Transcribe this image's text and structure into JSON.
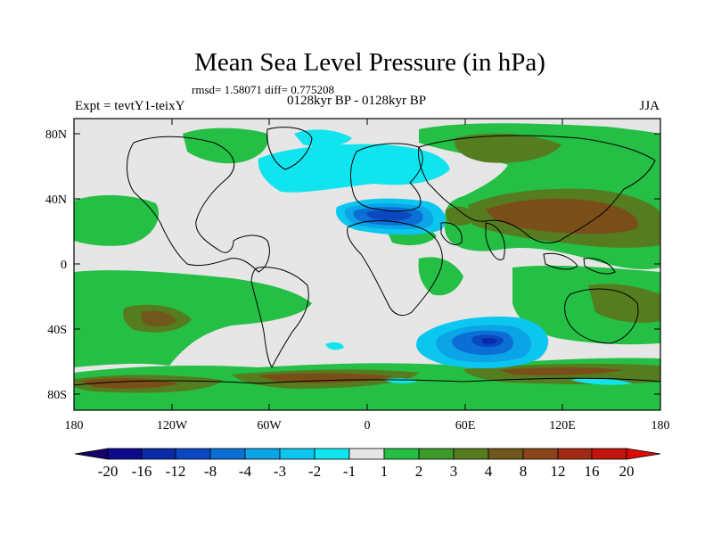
{
  "title": "Mean Sea Level Pressure (in hPa)",
  "stats": "rmsd= 1.58071 diff= 0.775208",
  "experiment": "Expt = tevtY1-teixY",
  "period": "0128kyr BP - 0128kyr BP",
  "season": "JJA",
  "lat_labels": [
    "80N",
    "40N",
    "0",
    "40S",
    "80S"
  ],
  "lon_labels": [
    "180",
    "120W",
    "60W",
    "0",
    "60E",
    "120E",
    "180"
  ],
  "colorbar": {
    "labels": [
      "-20",
      "-16",
      "-12",
      "-8",
      "-4",
      "-3",
      "-2",
      "-1",
      "1",
      "2",
      "3",
      "4",
      "8",
      "12",
      "16",
      "20"
    ],
    "colors": [
      "#15006a",
      "#0d0a8c",
      "#0a2aa8",
      "#0a47c0",
      "#0b6fd6",
      "#0ba4e6",
      "#0bc6ef",
      "#10e4ef",
      "#e6e6e6",
      "#25bf45",
      "#3d9a28",
      "#557c1f",
      "#70581c",
      "#8a4419",
      "#a22a14",
      "#c0140c",
      "#e00a05"
    ]
  },
  "colors": {
    "neutral": "#e6e6e6",
    "green": "#25bf45",
    "green_dark": "#3d9a28",
    "olive": "#6b6a1e",
    "brown": "#7a4e18",
    "cyan_light": "#10e4ef",
    "cyan": "#0bc6ef",
    "blue_mid": "#0ba4e6",
    "blue": "#0b6fd6",
    "blue_dark": "#0a47c0"
  }
}
